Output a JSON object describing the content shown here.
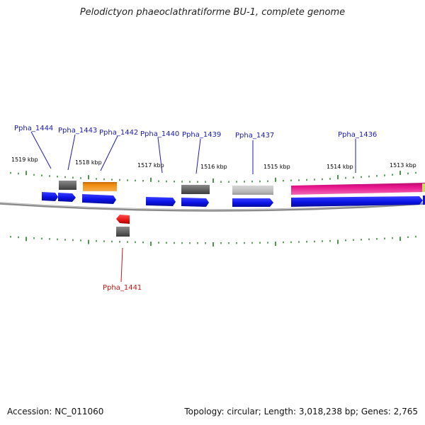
{
  "title": "Pelodictyon phaeoclathratiforme BU-1, complete genome",
  "footer": {
    "accession": "Accession: NC_011060",
    "summary": "Topology: circular; Length: 3,018,238 bp; Genes: 2,765"
  },
  "colors": {
    "label_upper": "#1a1ab3",
    "label_lower": "#c01818",
    "tick": "#1e7a1e",
    "backbone": "#7a7a7a",
    "blue": "#0a12e6",
    "dark_gray": "#5c5c5c",
    "light_gray": "#bdbdbd",
    "orange": "#f08c10",
    "magenta": "#e8148c",
    "red": "#e61414"
  },
  "kbp_ticks": [
    "1519 kbp",
    "1518 kbp",
    "1517 kbp",
    "1516 kbp",
    "1515 kbp",
    "1514 kbp",
    "1513 kbp"
  ],
  "gene_labels": [
    {
      "name": "Ppha_1444",
      "strand": "upper"
    },
    {
      "name": "Ppha_1443",
      "strand": "upper"
    },
    {
      "name": "Ppha_1442",
      "strand": "upper"
    },
    {
      "name": "Ppha_1440",
      "strand": "upper"
    },
    {
      "name": "Ppha_1439",
      "strand": "upper"
    },
    {
      "name": "Ppha_1437",
      "strand": "upper"
    },
    {
      "name": "Ppha_1436",
      "strand": "upper"
    },
    {
      "name": "Ppha_1441",
      "strand": "lower"
    }
  ]
}
